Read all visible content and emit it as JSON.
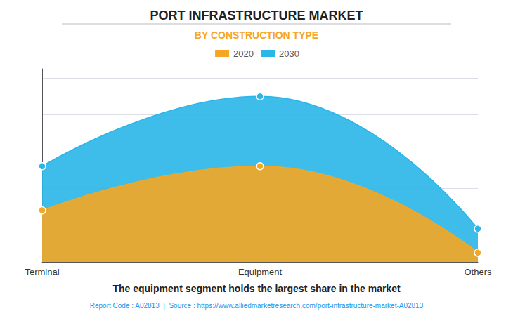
{
  "chart_data": {
    "type": "area",
    "title": "PORT INFRASTRUCTURE MARKET",
    "subtitle": "BY CONSTRUCTION TYPE",
    "categories": [
      "Terminal",
      "Equipment",
      "Others"
    ],
    "series": [
      {
        "name": "2020",
        "color": "#F5A623",
        "values": [
          0.28,
          0.52,
          0.05
        ]
      },
      {
        "name": "2030",
        "color": "#29B6E8",
        "values": [
          0.52,
          0.9,
          0.18
        ]
      }
    ],
    "ylim": [
      0,
      1.05
    ],
    "yticks": [
      0,
      0.2,
      0.4,
      0.6,
      0.8,
      1.0
    ],
    "grid": true,
    "legend": "top",
    "tick_labels": "x",
    "annotations": [
      "The equipment segment holds the largest share in the market",
      "Report Code : A02813  |  Source : https://www.alliedmarketresearch.com/port-infrastructure-market-A02813"
    ]
  }
}
